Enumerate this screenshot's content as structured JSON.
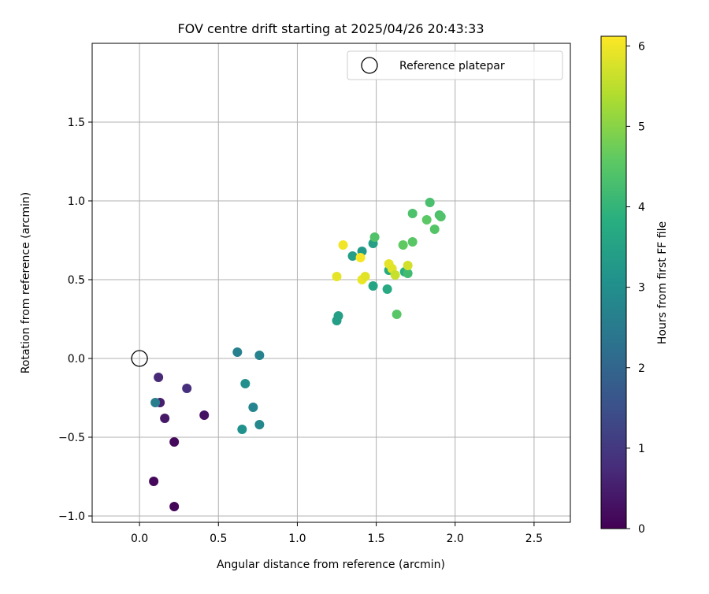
{
  "chart_data": {
    "type": "scatter",
    "title": "FOV centre drift starting at 2025/04/26 20:43:33",
    "xlabel": "Angular distance from reference (arcmin)",
    "ylabel": "Rotation from reference (arcmin)",
    "xlim": [
      -0.3,
      2.73
    ],
    "ylim": [
      -1.04,
      2.0
    ],
    "xticks": [
      "0.0",
      "0.5",
      "1.0",
      "1.5",
      "2.0",
      "2.5"
    ],
    "xtick_values": [
      0,
      0.5,
      1.0,
      1.5,
      2.0,
      2.5
    ],
    "yticks": [
      "−1.0",
      "−0.5",
      "0.0",
      "0.5",
      "1.0",
      "1.5"
    ],
    "ytick_values": [
      -1.0,
      -0.5,
      0.0,
      0.5,
      1.0,
      1.5
    ],
    "grid": true,
    "legend": {
      "position": "upper-right",
      "label": "Reference platepar"
    },
    "reference_point": {
      "x": 0.0,
      "y": 0.0
    },
    "colorbar": {
      "label": "Hours from first FF file",
      "range": [
        0,
        6.12
      ],
      "ticks": [
        "0",
        "1",
        "2",
        "3",
        "4",
        "5",
        "6"
      ],
      "tick_values": [
        0,
        1,
        2,
        3,
        4,
        5,
        6
      ],
      "colormap": "viridis"
    },
    "points": [
      {
        "x": 0.12,
        "y": -0.12,
        "hours": 0.7
      },
      {
        "x": 0.3,
        "y": -0.19,
        "hours": 0.8
      },
      {
        "x": 0.13,
        "y": -0.28,
        "hours": 0.5
      },
      {
        "x": 0.1,
        "y": -0.28,
        "hours": 2.6
      },
      {
        "x": 0.16,
        "y": -0.38,
        "hours": 0.4
      },
      {
        "x": 0.41,
        "y": -0.36,
        "hours": 0.3
      },
      {
        "x": 0.22,
        "y": -0.53,
        "hours": 0.15
      },
      {
        "x": 0.09,
        "y": -0.78,
        "hours": 0.1
      },
      {
        "x": 0.22,
        "y": -0.94,
        "hours": 0.05
      },
      {
        "x": 0.62,
        "y": 0.04,
        "hours": 2.65
      },
      {
        "x": 0.76,
        "y": 0.02,
        "hours": 2.7
      },
      {
        "x": 0.67,
        "y": -0.16,
        "hours": 3.0
      },
      {
        "x": 0.72,
        "y": -0.31,
        "hours": 2.75
      },
      {
        "x": 0.65,
        "y": -0.45,
        "hours": 3.05
      },
      {
        "x": 0.76,
        "y": -0.42,
        "hours": 2.85
      },
      {
        "x": 1.25,
        "y": 0.24,
        "hours": 3.4
      },
      {
        "x": 1.26,
        "y": 0.27,
        "hours": 3.45
      },
      {
        "x": 1.29,
        "y": 0.72,
        "hours": 6.0
      },
      {
        "x": 1.35,
        "y": 0.65,
        "hours": 3.4
      },
      {
        "x": 1.41,
        "y": 0.68,
        "hours": 3.3
      },
      {
        "x": 1.48,
        "y": 0.73,
        "hours": 3.45
      },
      {
        "x": 1.49,
        "y": 0.77,
        "hours": 4.4
      },
      {
        "x": 1.4,
        "y": 0.64,
        "hours": 6.05
      },
      {
        "x": 1.25,
        "y": 0.52,
        "hours": 5.9
      },
      {
        "x": 1.41,
        "y": 0.5,
        "hours": 5.95
      },
      {
        "x": 1.43,
        "y": 0.52,
        "hours": 5.85
      },
      {
        "x": 1.48,
        "y": 0.46,
        "hours": 3.6
      },
      {
        "x": 1.57,
        "y": 0.44,
        "hours": 3.7
      },
      {
        "x": 1.58,
        "y": 0.56,
        "hours": 3.75
      },
      {
        "x": 1.58,
        "y": 0.6,
        "hours": 5.9
      },
      {
        "x": 1.6,
        "y": 0.57,
        "hours": 5.85
      },
      {
        "x": 1.62,
        "y": 0.53,
        "hours": 5.6
      },
      {
        "x": 1.63,
        "y": 0.28,
        "hours": 4.5
      },
      {
        "x": 1.67,
        "y": 0.72,
        "hours": 4.6
      },
      {
        "x": 1.68,
        "y": 0.55,
        "hours": 3.85
      },
      {
        "x": 1.7,
        "y": 0.54,
        "hours": 4.2
      },
      {
        "x": 1.7,
        "y": 0.59,
        "hours": 5.7
      },
      {
        "x": 1.73,
        "y": 0.92,
        "hours": 4.35
      },
      {
        "x": 1.73,
        "y": 0.74,
        "hours": 4.5
      },
      {
        "x": 1.82,
        "y": 0.88,
        "hours": 4.55
      },
      {
        "x": 1.84,
        "y": 0.99,
        "hours": 4.3
      },
      {
        "x": 1.87,
        "y": 0.82,
        "hours": 4.45
      },
      {
        "x": 1.9,
        "y": 0.91,
        "hours": 4.3
      },
      {
        "x": 1.91,
        "y": 0.9,
        "hours": 4.4
      }
    ]
  }
}
